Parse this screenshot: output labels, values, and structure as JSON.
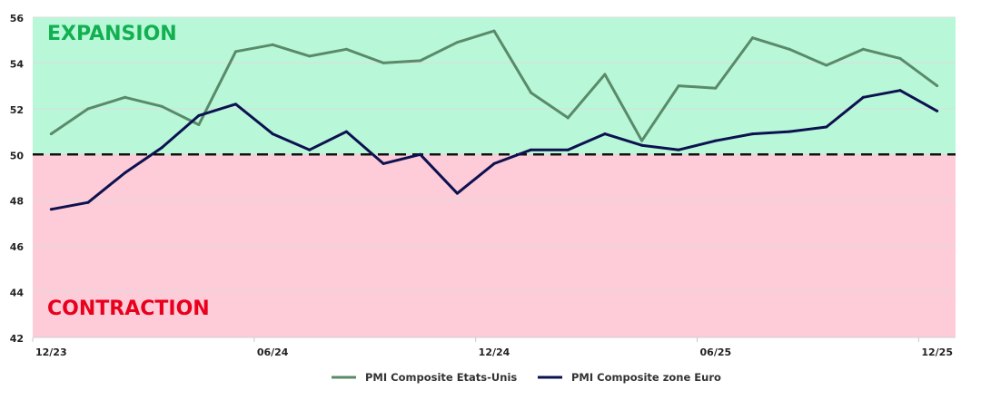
{
  "chart_data": {
    "type": "line",
    "title": "",
    "xlabel": "",
    "ylabel": "",
    "ylim": [
      42,
      56
    ],
    "yticks": [
      42,
      44,
      46,
      48,
      50,
      52,
      54,
      56
    ],
    "grid": true,
    "threshold": 50,
    "categories": [
      "12/23",
      "01/24",
      "02/24",
      "03/24",
      "04/24",
      "05/24",
      "06/24",
      "07/24",
      "08/24",
      "09/24",
      "10/24",
      "11/24",
      "12/24",
      "01/25",
      "02/25",
      "03/25",
      "04/25",
      "05/25",
      "06/25",
      "07/25",
      "08/25",
      "09/25",
      "10/25",
      "11/25",
      "12/25"
    ],
    "xtick_labels": [
      {
        "index": 0,
        "label": "12/23"
      },
      {
        "index": 6,
        "label": "06/24"
      },
      {
        "index": 12,
        "label": "12/24"
      },
      {
        "index": 18,
        "label": "06/25"
      },
      {
        "index": 24,
        "label": "12/25"
      }
    ],
    "zones": {
      "expansion_label": "EXPANSION",
      "contraction_label": "CONTRACTION"
    },
    "legend_position": "bottom",
    "series": [
      {
        "name": "PMI Composite Etats-Unis",
        "color": "#5a8a6a",
        "values": [
          50.9,
          52.0,
          52.5,
          52.1,
          51.3,
          54.5,
          54.8,
          54.3,
          54.6,
          54.0,
          54.1,
          54.9,
          55.4,
          52.7,
          51.6,
          53.5,
          50.6,
          53.0,
          52.9,
          55.1,
          54.6,
          53.9,
          54.6,
          54.2,
          53.0
        ]
      },
      {
        "name": "PMI Composite zone Euro",
        "color": "#0d1150",
        "values": [
          47.6,
          47.9,
          49.2,
          50.3,
          51.7,
          52.2,
          50.9,
          50.2,
          51.0,
          49.6,
          50.0,
          48.3,
          49.6,
          50.2,
          50.2,
          50.9,
          50.4,
          50.2,
          50.6,
          50.9,
          51.0,
          51.2,
          52.5,
          52.8,
          51.9
        ]
      }
    ],
    "colors": {
      "expansion_bg": "#b8f8d8",
      "contraction_bg": "#fdccd8",
      "expansion_text": "#12b050",
      "contraction_text": "#e8001c"
    }
  }
}
